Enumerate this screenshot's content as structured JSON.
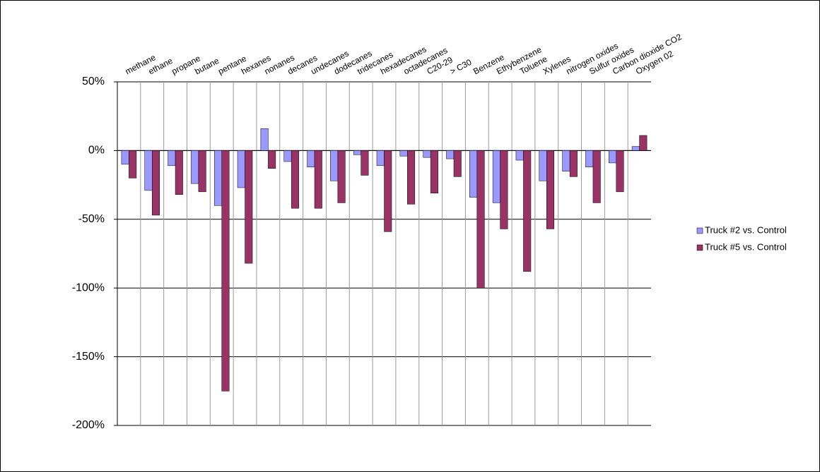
{
  "chart_data": {
    "type": "bar",
    "categories": [
      "methane",
      "ethane",
      "propane",
      "butane",
      "pentane",
      "hexanes",
      "nonanes",
      "decanes",
      "undecanes",
      "dodecanes",
      "tridecanes",
      "hexadecanes",
      "octadecanes",
      "C20-29",
      "> C30",
      "Benzene",
      "Ethybenzene",
      "Toluene",
      "Xylenes",
      "nitrogen oxides",
      "Sulfur oxides",
      "Carbon dioxide CO2",
      "Oxygen 02"
    ],
    "series": [
      {
        "name": "Truck #2 vs. Control",
        "color": "#9999ff",
        "values": [
          -10,
          -29,
          -11,
          -24,
          -40,
          -27,
          16,
          -8,
          -12,
          -22,
          -3,
          -11,
          -4,
          -5,
          -6,
          -34,
          -38,
          -7,
          -22,
          -15,
          -12,
          -9,
          3
        ]
      },
      {
        "name": "Truck #5 vs. Control",
        "color": "#993366",
        "values": [
          -20,
          -47,
          -32,
          -30,
          -175,
          -82,
          -13,
          -42,
          -42,
          -38,
          -18,
          -59,
          -39,
          -31,
          -19,
          -100,
          -57,
          -88,
          -57,
          -19,
          -38,
          -30,
          11
        ]
      }
    ],
    "ylim": [
      -200,
      50
    ],
    "yticks": [
      {
        "value": -200,
        "label": "-200%"
      },
      {
        "value": -150,
        "label": "-150%"
      },
      {
        "value": -100,
        "label": "-100%"
      },
      {
        "value": -50,
        "label": "-50%"
      },
      {
        "value": 0,
        "label": "0%"
      },
      {
        "value": 50,
        "label": "50%"
      }
    ],
    "grid": true,
    "legend": "right"
  }
}
